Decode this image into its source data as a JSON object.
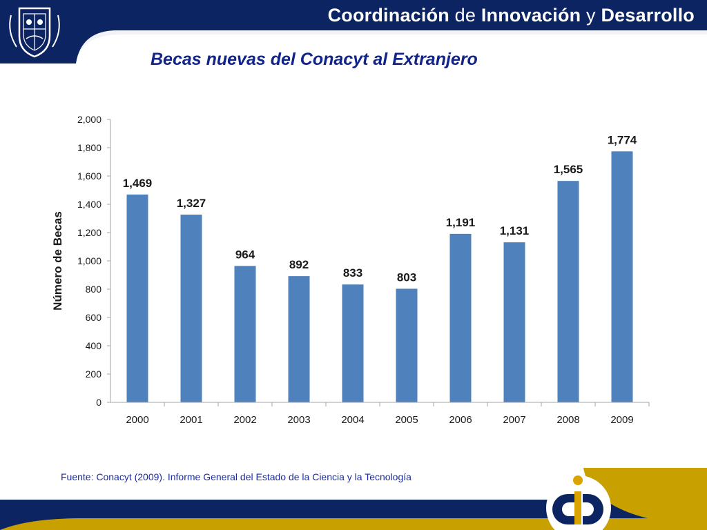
{
  "header": {
    "org_part1": "Coordinación",
    "org_conn1": "de",
    "org_part2": "Innovación",
    "org_conn2": "y",
    "org_part3": "Desarrollo",
    "title": "Becas nuevas del Conacyt al Extranjero"
  },
  "colors": {
    "navy": "#0c2461",
    "bar": "#4f81bd",
    "gold": "#c8a000",
    "title_blue": "#10248a"
  },
  "chart_data": {
    "type": "bar",
    "title": "",
    "xlabel": "",
    "ylabel": "Número de Becas",
    "categories": [
      "2000",
      "2001",
      "2002",
      "2003",
      "2004",
      "2005",
      "2006",
      "2007",
      "2008",
      "2009"
    ],
    "values": [
      1469,
      1327,
      964,
      892,
      833,
      803,
      1191,
      1131,
      1565,
      1774
    ],
    "value_labels": [
      "1,469",
      "1,327",
      "964",
      "892",
      "833",
      "803",
      "1,191",
      "1,131",
      "1,565",
      "1,774"
    ],
    "ylim": [
      0,
      2000
    ],
    "yticks": [
      0,
      200,
      400,
      600,
      800,
      1000,
      1200,
      1400,
      1600,
      1800,
      2000
    ],
    "ytick_labels": [
      "0",
      "200",
      "400",
      "600",
      "800",
      "1,000",
      "1,200",
      "1,400",
      "1,600",
      "1,800",
      "2,000"
    ],
    "grid": false,
    "legend": "none"
  },
  "footer": {
    "source": "Fuente: Conacyt (2009). Informe General del Estado de la Ciencia y la Tecnología"
  }
}
